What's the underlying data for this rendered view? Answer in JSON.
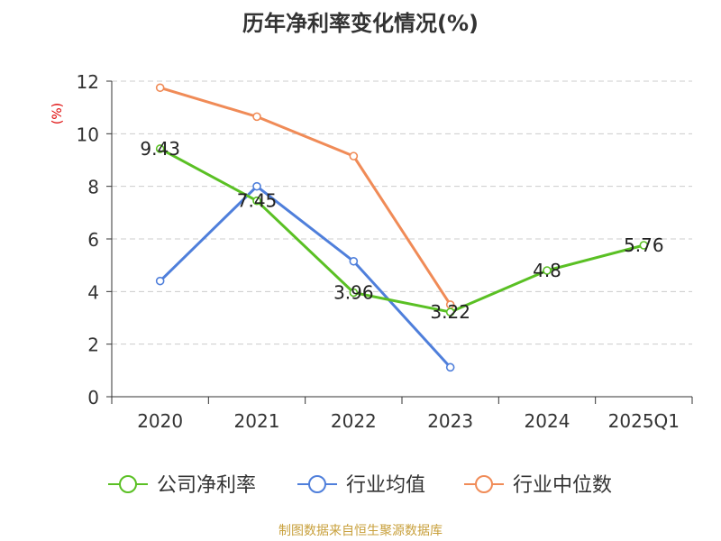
{
  "chart_data": {
    "type": "line",
    "title": "历年净利率变化情况(%)",
    "ylabel": "(%)",
    "categories": [
      "2020",
      "2021",
      "2022",
      "2023",
      "2024",
      "2025Q1"
    ],
    "ylim": [
      0,
      12
    ],
    "yticks": [
      0,
      2,
      4,
      6,
      8,
      10,
      12
    ],
    "grid": true,
    "legend_position": "bottom",
    "series": [
      {
        "name": "公司净利率",
        "color": "#5ac024",
        "values": [
          9.43,
          7.45,
          3.96,
          3.22,
          4.8,
          5.76
        ],
        "labels": [
          "9.43",
          "7.45",
          "3.96",
          "3.22",
          "4.8",
          "5.76"
        ]
      },
      {
        "name": "行业均值",
        "color": "#4f7fdb",
        "values": [
          4.4,
          8.0,
          5.15,
          1.12,
          null,
          null
        ]
      },
      {
        "name": "行业中位数",
        "color": "#f08b57",
        "values": [
          11.75,
          10.65,
          9.15,
          3.5,
          null,
          null
        ]
      }
    ]
  },
  "footer": {
    "text": "制图数据来自恒生聚源数据库",
    "color": "#c8a03c"
  }
}
